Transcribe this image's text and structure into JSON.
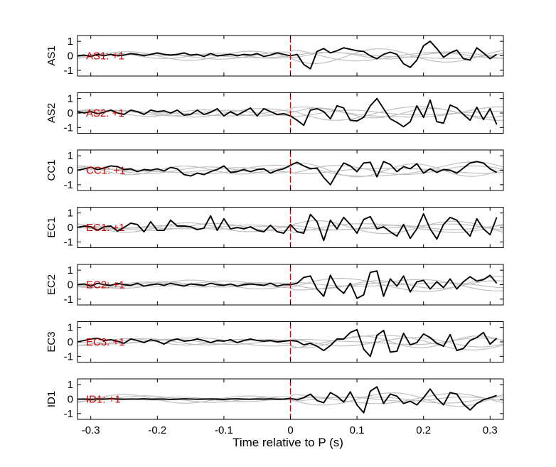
{
  "figure": {
    "xlabel": "Time relative to P (s)",
    "colors": {
      "trace": "#000000",
      "background_traces": "#c0c0c0",
      "marker": "#e00000",
      "label": "#cc0000",
      "axes": "#000000"
    }
  },
  "chart_data": {
    "type": "line",
    "xlim": [
      -0.32,
      0.32
    ],
    "ylim": [
      -1.4,
      1.4
    ],
    "x_ticks": [
      -0.3,
      -0.2,
      -0.1,
      0,
      0.1,
      0.2,
      0.3
    ],
    "x_tick_labels": [
      "-0.3",
      "-0.2",
      "-0.1",
      "0",
      "0.1",
      "0.2",
      "0.3"
    ],
    "y_ticks": [
      1,
      0,
      -1
    ],
    "y_tick_labels": [
      "1",
      "0",
      "-1"
    ],
    "marker_x": 0,
    "grid": false,
    "x": [
      -0.32,
      -0.31,
      -0.3,
      -0.29,
      -0.28,
      -0.27,
      -0.26,
      -0.25,
      -0.24,
      -0.23,
      -0.22,
      -0.21,
      -0.2,
      -0.19,
      -0.18,
      -0.17,
      -0.16,
      -0.15,
      -0.14,
      -0.13,
      -0.12,
      -0.11,
      -0.1,
      -0.09,
      -0.08,
      -0.07,
      -0.06,
      -0.05,
      -0.04,
      -0.03,
      -0.02,
      -0.01,
      0,
      0.01,
      0.02,
      0.03,
      0.04,
      0.05,
      0.06,
      0.07,
      0.08,
      0.09,
      0.1,
      0.11,
      0.12,
      0.13,
      0.14,
      0.15,
      0.16,
      0.17,
      0.18,
      0.19,
      0.2,
      0.21,
      0.22,
      0.23,
      0.24,
      0.25,
      0.26,
      0.27,
      0.28,
      0.29,
      0.3,
      0.31
    ],
    "panels": [
      {
        "ylabel": "AS1",
        "label": "AS1: +1",
        "values": [
          0,
          0.05,
          -0.05,
          0.1,
          0,
          0.1,
          0,
          0.05,
          0.15,
          0.1,
          0,
          0.1,
          0.2,
          0.1,
          0.05,
          0.1,
          0.2,
          0.05,
          0.1,
          -0.05,
          0.15,
          0,
          0.05,
          0.1,
          0,
          0.1,
          0.05,
          0.15,
          -0.05,
          0.05,
          0.2,
          0.1,
          0,
          0.1,
          -0.6,
          -0.9,
          0.3,
          0.5,
          0.2,
          0.35,
          0.55,
          0.45,
          0.35,
          0.3,
          0,
          -0.2,
          0.1,
          0.25,
          0.1,
          -0.55,
          -0.8,
          -0.3,
          0.7,
          1.0,
          0.5,
          -0.1,
          0.2,
          0.4,
          -0.2,
          -0.3,
          0.55,
          0.2,
          -0.2,
          0.1
        ]
      },
      {
        "ylabel": "AS2",
        "label": "AS2: +1",
        "values": [
          0.1,
          0,
          0.1,
          -0.05,
          0.05,
          0.2,
          0,
          -0.1,
          0.2,
          0.1,
          -0.1,
          0.2,
          0.1,
          0.15,
          0,
          0.2,
          -0.15,
          -0.1,
          0.2,
          -0.1,
          0.05,
          0.3,
          -0.2,
          0.1,
          -0.15,
          0.1,
          0.35,
          -0.2,
          0.3,
          0.1,
          -0.1,
          -0.05,
          -0.2,
          -0.5,
          -0.85,
          0.2,
          0.3,
          0.1,
          -0.4,
          0.5,
          0.35,
          -0.5,
          -0.55,
          -0.3,
          0.5,
          1.0,
          0.3,
          -0.4,
          -0.65,
          -0.95,
          -0.6,
          0.5,
          -0.3,
          0.9,
          -0.6,
          -0.7,
          0.55,
          0.35,
          -0.1,
          -0.5,
          0.4,
          -0.45,
          0.3,
          -0.8
        ]
      },
      {
        "ylabel": "CC1",
        "label": "CC1: +1",
        "values": [
          0,
          0.1,
          0.2,
          0.05,
          0.15,
          0.3,
          0.25,
          0.05,
          0.1,
          -0.1,
          0.05,
          0,
          0.1,
          -0.05,
          0.2,
          0.1,
          -0.3,
          -0.4,
          -0.2,
          -0.3,
          -0.1,
          0.05,
          0.3,
          -0.15,
          -0.1,
          0.05,
          -0.1,
          0.05,
          0.1,
          -0.2,
          0,
          0.1,
          0.35,
          0.55,
          0.3,
          0.1,
          0.15,
          -0.5,
          -1.0,
          -0.2,
          0.5,
          0.3,
          -0.1,
          0.5,
          0.55,
          -0.45,
          0.6,
          0.4,
          -0.1,
          0.25,
          0.1,
          0.45,
          -0.2,
          0.1,
          -0.15,
          0.05,
          0,
          -0.2,
          0.15,
          0.5,
          0.6,
          0.5,
          0.1,
          -0.15
        ]
      },
      {
        "ylabel": "EC1",
        "label": "EC1: +1",
        "values": [
          0,
          0.1,
          0.05,
          -0.2,
          0.05,
          0.1,
          -0.25,
          0,
          0.3,
          0.2,
          -0.3,
          0.4,
          -0.2,
          -0.2,
          0.5,
          0.1,
          0.1,
          0.05,
          -0.15,
          -0.05,
          0.8,
          -0.2,
          0.6,
          -0.1,
          0,
          -0.1,
          0.05,
          -0.2,
          -0.3,
          0.15,
          -0.3,
          -0.4,
          0.2,
          -0.3,
          -0.4,
          0.9,
          0.4,
          -0.9,
          0.5,
          -0.1,
          0.7,
          0.2,
          -0.4,
          0.55,
          0.75,
          -0.1,
          0.05,
          -0.3,
          -0.6,
          0.2,
          -0.75,
          -0.1,
          0.95,
          -0.1,
          -0.8,
          0.2,
          0.7,
          0.5,
          -0.1,
          -0.6,
          0.6,
          -0.1,
          -0.5,
          0.7
        ]
      },
      {
        "ylabel": "EC2",
        "label": "EC2: +1",
        "values": [
          0,
          0.05,
          -0.1,
          0.1,
          0,
          -0.05,
          0.1,
          0,
          -0.05,
          0.1,
          -0.1,
          0,
          0.05,
          -0.05,
          0.1,
          0,
          -0.1,
          0.05,
          0,
          -0.05,
          0.1,
          0,
          -0.05,
          0.05,
          -0.1,
          0,
          0.05,
          0,
          -0.05,
          0.1,
          -0.1,
          0,
          0,
          0.1,
          0.5,
          0.6,
          -0.3,
          -0.8,
          0.65,
          -0.2,
          -0.6,
          0.1,
          -0.95,
          -0.7,
          0.85,
          0.95,
          -0.8,
          0.4,
          -0.1,
          0.6,
          -0.5,
          0.2,
          0.3,
          -0.3,
          0.2,
          -0.2,
          0.4,
          -0.3,
          0.2,
          0.55,
          0.25,
          0.35,
          0.65,
          0.1
        ]
      },
      {
        "ylabel": "EC3",
        "label": "EC3: +1",
        "values": [
          0,
          0.1,
          0.2,
          0.25,
          0.1,
          0.15,
          0.05,
          -0.1,
          0.2,
          0.1,
          -0.05,
          0.15,
          0.05,
          -0.15,
          0.1,
          0.2,
          0.05,
          0.1,
          0.2,
          0.1,
          -0.05,
          0.1,
          0.05,
          0.15,
          -0.05,
          0.1,
          0.2,
          0.1,
          0.05,
          0.1,
          0,
          0.05,
          0.1,
          0.05,
          -0.2,
          -0.1,
          -0.3,
          -0.6,
          -0.25,
          0.2,
          0.2,
          0.65,
          0.85,
          -0.5,
          -1.0,
          0.45,
          0.8,
          -0.7,
          -0.65,
          0.6,
          -0.2,
          -0.05,
          0.55,
          0.3,
          -0.1,
          -0.3,
          0.5,
          -0.6,
          -0.45,
          0.1,
          0.3,
          0.65,
          -0.15,
          0.25
        ]
      },
      {
        "ylabel": "ID1",
        "label": "ID1: +1",
        "values": [
          0,
          0,
          -0.02,
          0.01,
          0,
          0.02,
          0,
          -0.01,
          0.01,
          0,
          0.02,
          -0.01,
          0,
          0.01,
          -0.02,
          0,
          0.02,
          0.01,
          -0.01,
          0,
          0.01,
          0,
          -0.02,
          0.01,
          0.02,
          0,
          -0.01,
          0.01,
          0,
          0.02,
          -0.01,
          0,
          0.05,
          -0.05,
          0.1,
          0.35,
          -0.1,
          -0.25,
          0.45,
          0.2,
          -0.2,
          0.5,
          -0.4,
          -0.95,
          0.55,
          0.85,
          -0.3,
          0.35,
          0.2,
          -0.3,
          -0.15,
          -0.4,
          0.1,
          0.7,
          0.05,
          -0.4,
          0.45,
          0.35,
          -0.35,
          -0.75,
          -0.3,
          -0.05,
          0.1,
          0.25
        ]
      }
    ]
  }
}
